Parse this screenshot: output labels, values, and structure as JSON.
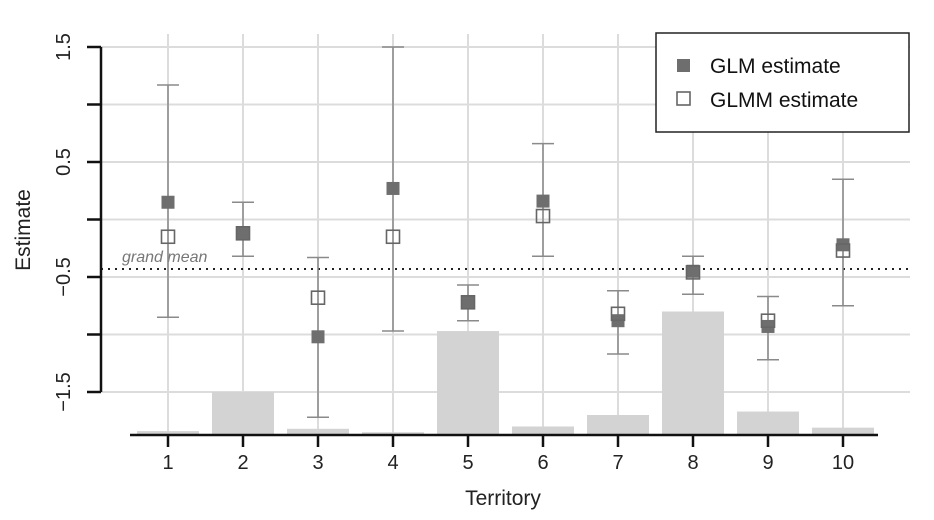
{
  "chart_data": {
    "type": "scatter",
    "xlabel": "Territory",
    "ylabel": "Estimate",
    "categories": [
      "1",
      "2",
      "3",
      "4",
      "5",
      "6",
      "7",
      "8",
      "9",
      "10"
    ],
    "ylim": [
      -1.9,
      1.5
    ],
    "yticks": [
      "1.5",
      "0.5",
      "−0.5",
      "−1.5"
    ],
    "ytick_values": [
      1.5,
      0.5,
      -0.5,
      -1.5
    ],
    "grid": true,
    "legend_position": "top-right",
    "series": [
      {
        "name": "GLM estimate",
        "marker": "filled-square",
        "color": "#6e6e6e",
        "values": [
          0.15,
          -0.12,
          -1.02,
          0.27,
          -0.72,
          0.16,
          -0.88,
          -0.45,
          -0.93,
          -0.22
        ]
      },
      {
        "name": "GLMM estimate",
        "marker": "open-square",
        "color": "#666666",
        "values": [
          -0.15,
          -0.12,
          -0.68,
          -0.15,
          -0.72,
          0.03,
          -0.82,
          -0.46,
          -0.88,
          -0.27
        ]
      }
    ],
    "error_bars": {
      "color": "#8a8a8a",
      "lower": [
        -0.85,
        -0.32,
        -1.72,
        -0.97,
        -0.88,
        -0.32,
        -1.17,
        -0.65,
        -1.22,
        -0.75
      ],
      "upper": [
        1.17,
        0.15,
        -0.33,
        1.5,
        -0.57,
        0.66,
        -0.62,
        -0.32,
        -0.67,
        0.35
      ]
    },
    "bars": {
      "color": "#d3d3d3",
      "values": [
        -1.84,
        -1.5,
        -1.82,
        -1.85,
        -0.97,
        -1.8,
        -1.7,
        -0.8,
        -1.67,
        -1.81
      ]
    },
    "reference_line": {
      "label": "grand mean",
      "value": -0.43
    }
  }
}
